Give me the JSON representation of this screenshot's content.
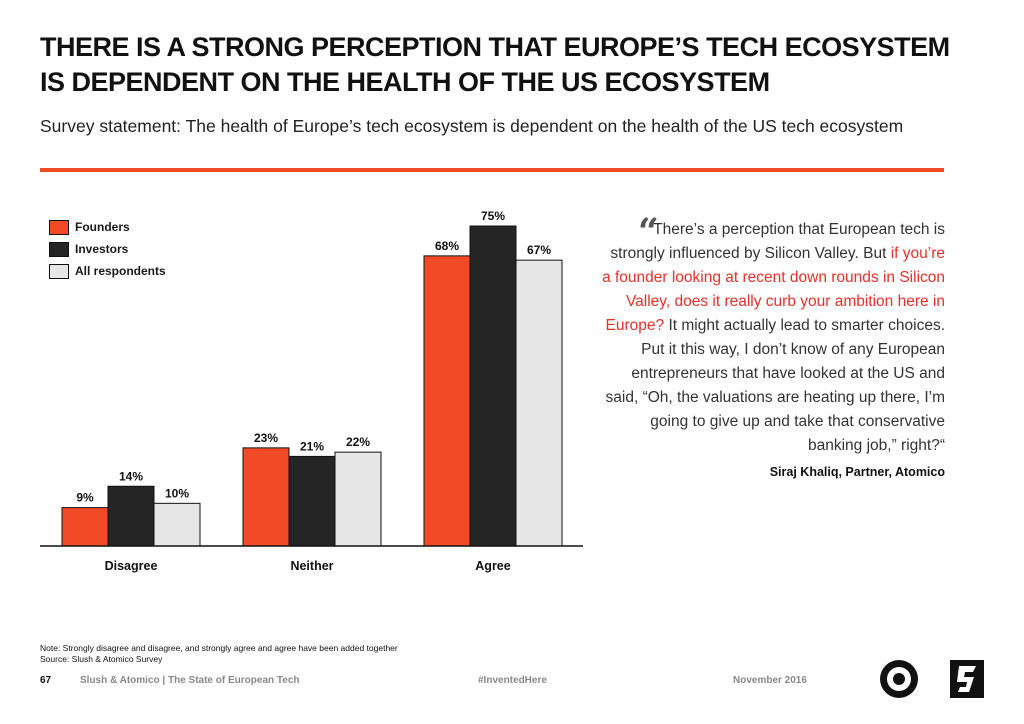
{
  "header": {
    "title": "THERE IS A STRONG PERCEPTION THAT EUROPE’S TECH ECOSYSTEM IS DEPENDENT ON THE HEALTH OF THE US ECOSYSTEM",
    "subtitle": "Survey statement: The health of Europe’s tech ecosystem is dependent on the health of the US tech ecosystem"
  },
  "colors": {
    "accent": "#ef4b26",
    "founders": "#f24a27",
    "investors": "#252525",
    "all": "#e6e6e6",
    "highlight": "#e8302a"
  },
  "chart_data": {
    "type": "bar",
    "categories": [
      "Disagree",
      "Neither",
      "Agree"
    ],
    "series": [
      {
        "name": "Founders",
        "values": [
          9,
          23,
          68
        ],
        "labels": [
          "9%",
          "23%",
          "68%"
        ]
      },
      {
        "name": "Investors",
        "values": [
          14,
          21,
          75
        ],
        "labels": [
          "14%",
          "21%",
          "75%"
        ]
      },
      {
        "name": "All respondents",
        "values": [
          10,
          22,
          67
        ],
        "labels": [
          "10%",
          "22%",
          "67%"
        ]
      }
    ],
    "ylim": [
      0,
      75
    ],
    "legend": "top-left",
    "grid": false
  },
  "quote": {
    "mark": "“",
    "part1": "There’s a perception that European tech is strongly influenced by Silicon Valley. But ",
    "highlight": "if you’re a founder looking at recent down rounds in Silicon Valley, does it really curb your ambition here in Europe?",
    "part2": " It might actually lead to smarter choices. Put it this way, I don’t know of any European entrepreneurs that have looked at the US and said, “Oh, the valuations are heating up there, I’m going to give up and take that conservative banking job,” right?“",
    "attribution": "Siraj Khaliq, Partner, Atomico"
  },
  "notes": {
    "note": "Note: Strongly disagree and disagree, and strongly agree and agree have been added together",
    "source": "Source: Slush & Atomico Survey"
  },
  "footer": {
    "page": "67",
    "publication": "Slush & Atomico  |  The State of European Tech",
    "hashtag": "#InventedHere",
    "date": "November 2016"
  }
}
